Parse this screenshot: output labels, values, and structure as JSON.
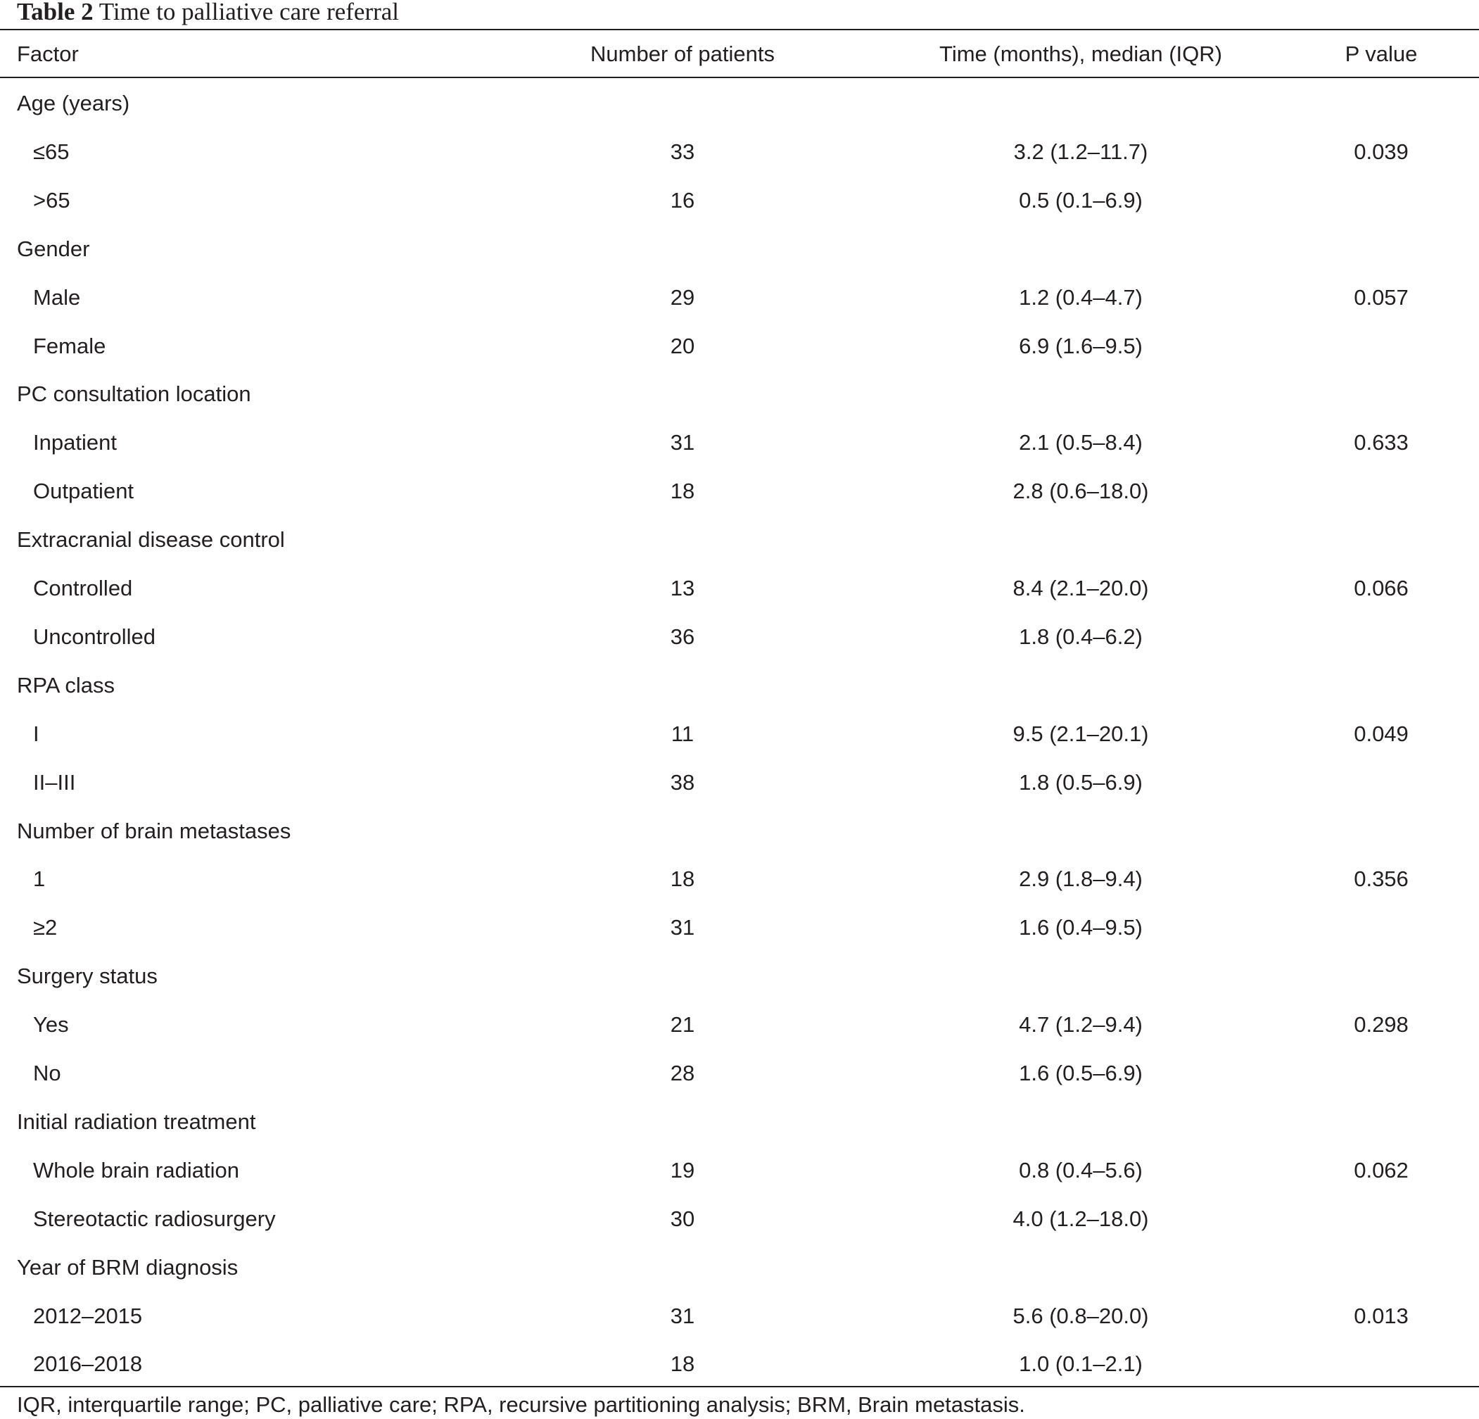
{
  "caption": {
    "label": "Table 2",
    "title": "Time to palliative care referral"
  },
  "columns": [
    "Factor",
    "Number of patients",
    "Time (months), median (IQR)",
    "P value"
  ],
  "rows": [
    {
      "kind": "group",
      "factor": "Age (years)",
      "n": "",
      "time": "",
      "p": ""
    },
    {
      "kind": "sub",
      "factor": "≤65",
      "n": "33",
      "time": "3.2 (1.2–11.7)",
      "p": "0.039"
    },
    {
      "kind": "sub",
      "factor": ">65",
      "n": "16",
      "time": "0.5 (0.1–6.9)",
      "p": ""
    },
    {
      "kind": "group",
      "factor": "Gender",
      "n": "",
      "time": "",
      "p": ""
    },
    {
      "kind": "sub",
      "factor": "Male",
      "n": "29",
      "time": "1.2 (0.4–4.7)",
      "p": "0.057"
    },
    {
      "kind": "sub",
      "factor": "Female",
      "n": "20",
      "time": "6.9 (1.6–9.5)",
      "p": ""
    },
    {
      "kind": "group",
      "factor": "PC consultation location",
      "n": "",
      "time": "",
      "p": ""
    },
    {
      "kind": "sub",
      "factor": "Inpatient",
      "n": "31",
      "time": "2.1 (0.5–8.4)",
      "p": "0.633"
    },
    {
      "kind": "sub",
      "factor": "Outpatient",
      "n": "18",
      "time": "2.8 (0.6–18.0)",
      "p": ""
    },
    {
      "kind": "group",
      "factor": "Extracranial disease control",
      "n": "",
      "time": "",
      "p": ""
    },
    {
      "kind": "sub",
      "factor": "Controlled",
      "n": "13",
      "time": "8.4 (2.1–20.0)",
      "p": "0.066"
    },
    {
      "kind": "sub",
      "factor": "Uncontrolled",
      "n": "36",
      "time": "1.8 (0.4–6.2)",
      "p": ""
    },
    {
      "kind": "group",
      "factor": "RPA class",
      "n": "",
      "time": "",
      "p": ""
    },
    {
      "kind": "sub",
      "factor": "I",
      "n": "11",
      "time": "9.5 (2.1–20.1)",
      "p": "0.049"
    },
    {
      "kind": "sub",
      "factor": "II–III",
      "n": "38",
      "time": "1.8 (0.5–6.9)",
      "p": ""
    },
    {
      "kind": "group",
      "factor": "Number of brain metastases",
      "n": "",
      "time": "",
      "p": ""
    },
    {
      "kind": "sub",
      "factor": "1",
      "n": "18",
      "time": "2.9 (1.8–9.4)",
      "p": "0.356"
    },
    {
      "kind": "sub",
      "factor": "≥2",
      "n": "31",
      "time": "1.6 (0.4–9.5)",
      "p": ""
    },
    {
      "kind": "group",
      "factor": "Surgery status",
      "n": "",
      "time": "",
      "p": ""
    },
    {
      "kind": "sub",
      "factor": "Yes",
      "n": "21",
      "time": "4.7 (1.2–9.4)",
      "p": "0.298"
    },
    {
      "kind": "sub",
      "factor": "No",
      "n": "28",
      "time": "1.6 (0.5–6.9)",
      "p": ""
    },
    {
      "kind": "group",
      "factor": "Initial radiation treatment",
      "n": "",
      "time": "",
      "p": ""
    },
    {
      "kind": "sub",
      "factor": "Whole brain radiation",
      "n": "19",
      "time": "0.8 (0.4–5.6)",
      "p": "0.062"
    },
    {
      "kind": "sub",
      "factor": "Stereotactic radiosurgery",
      "n": "30",
      "time": "4.0 (1.2–18.0)",
      "p": ""
    },
    {
      "kind": "group",
      "factor": "Year of BRM diagnosis",
      "n": "",
      "time": "",
      "p": ""
    },
    {
      "kind": "sub",
      "factor": "2012–2015",
      "n": "31",
      "time": "5.6 (0.8–20.0)",
      "p": "0.013"
    },
    {
      "kind": "sub",
      "factor": "2016–2018",
      "n": "18",
      "time": "1.0 (0.1–2.1)",
      "p": ""
    }
  ],
  "footnote": "IQR, interquartile range; PC, palliative care; RPA, recursive partitioning analysis; BRM, Brain metastasis."
}
